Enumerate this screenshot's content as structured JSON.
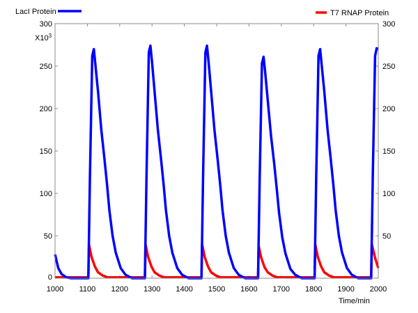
{
  "chart_data": {
    "type": "line",
    "title": "",
    "xlabel": "Time/min",
    "ylabel": "",
    "y_multiplier_label": "X10",
    "y_multiplier_exp": "3",
    "xlim": [
      1000,
      2000
    ],
    "ylim": [
      0,
      300
    ],
    "x_ticks": [
      "1000",
      "1100",
      "1200",
      "1300",
      "1400",
      "1500",
      "1600",
      "1700",
      "1800",
      "1900",
      "2000"
    ],
    "y_ticks_left": [
      "0",
      "50",
      "100",
      "150",
      "200",
      "250",
      "300"
    ],
    "y_ticks_right": [
      "50",
      "100",
      "150",
      "200",
      "250",
      "300"
    ],
    "grid": false,
    "series": [
      {
        "name": "LacI Protein",
        "color": "#0000ff",
        "legend": "top-left",
        "points": [
          [
            1000,
            28
          ],
          [
            1010,
            12
          ],
          [
            1020,
            5
          ],
          [
            1035,
            1
          ],
          [
            1050,
            0
          ],
          [
            1103,
            0
          ],
          [
            1103,
            0
          ],
          [
            1108,
            120
          ],
          [
            1115,
            262
          ],
          [
            1120,
            270
          ],
          [
            1125,
            251
          ],
          [
            1133,
            220
          ],
          [
            1143,
            175
          ],
          [
            1153,
            140
          ],
          [
            1161,
            110
          ],
          [
            1168,
            80
          ],
          [
            1178,
            50
          ],
          [
            1188,
            30
          ],
          [
            1203,
            12
          ],
          [
            1218,
            4
          ],
          [
            1238,
            0
          ],
          [
            1278,
            0
          ],
          [
            1283,
            120
          ],
          [
            1290,
            266
          ],
          [
            1295,
            274
          ],
          [
            1300,
            255
          ],
          [
            1308,
            220
          ],
          [
            1318,
            175
          ],
          [
            1328,
            140
          ],
          [
            1336,
            110
          ],
          [
            1343,
            80
          ],
          [
            1353,
            50
          ],
          [
            1363,
            30
          ],
          [
            1378,
            12
          ],
          [
            1393,
            4
          ],
          [
            1413,
            0
          ],
          [
            1453,
            0
          ],
          [
            1458,
            120
          ],
          [
            1465,
            266
          ],
          [
            1470,
            274
          ],
          [
            1475,
            255
          ],
          [
            1483,
            220
          ],
          [
            1493,
            175
          ],
          [
            1503,
            140
          ],
          [
            1511,
            110
          ],
          [
            1518,
            80
          ],
          [
            1528,
            50
          ],
          [
            1538,
            30
          ],
          [
            1553,
            12
          ],
          [
            1568,
            4
          ],
          [
            1588,
            0
          ],
          [
            1628,
            0
          ],
          [
            1633,
            115
          ],
          [
            1640,
            253
          ],
          [
            1645,
            261
          ],
          [
            1650,
            243
          ],
          [
            1658,
            210
          ],
          [
            1668,
            168
          ],
          [
            1678,
            135
          ],
          [
            1686,
            105
          ],
          [
            1693,
            77
          ],
          [
            1703,
            48
          ],
          [
            1713,
            29
          ],
          [
            1728,
            11
          ],
          [
            1743,
            4
          ],
          [
            1763,
            0
          ],
          [
            1803,
            0
          ],
          [
            1808,
            120
          ],
          [
            1815,
            262
          ],
          [
            1820,
            270
          ],
          [
            1825,
            251
          ],
          [
            1833,
            220
          ],
          [
            1843,
            175
          ],
          [
            1853,
            140
          ],
          [
            1861,
            110
          ],
          [
            1868,
            80
          ],
          [
            1878,
            50
          ],
          [
            1888,
            30
          ],
          [
            1903,
            12
          ],
          [
            1918,
            4
          ],
          [
            1938,
            0
          ],
          [
            1978,
            0
          ],
          [
            1983,
            120
          ],
          [
            1990,
            262
          ],
          [
            1995,
            271
          ],
          [
            2000,
            270
          ]
        ]
      },
      {
        "name": "T7 RNAP Protein",
        "color": "#ff0000",
        "legend": "top-right",
        "points": [
          [
            1000,
            1
          ],
          [
            1102,
            1
          ],
          [
            1103,
            2
          ],
          [
            1105,
            40
          ],
          [
            1113,
            25
          ],
          [
            1123,
            14
          ],
          [
            1133,
            7
          ],
          [
            1148,
            3
          ],
          [
            1163,
            1
          ],
          [
            1277,
            1
          ],
          [
            1278,
            2
          ],
          [
            1280,
            40
          ],
          [
            1288,
            25
          ],
          [
            1298,
            14
          ],
          [
            1308,
            7
          ],
          [
            1323,
            3
          ],
          [
            1338,
            1
          ],
          [
            1452,
            1
          ],
          [
            1453,
            2
          ],
          [
            1455,
            40
          ],
          [
            1463,
            25
          ],
          [
            1473,
            14
          ],
          [
            1483,
            7
          ],
          [
            1498,
            3
          ],
          [
            1513,
            1
          ],
          [
            1627,
            1
          ],
          [
            1628,
            2
          ],
          [
            1630,
            38
          ],
          [
            1638,
            24
          ],
          [
            1648,
            13
          ],
          [
            1658,
            7
          ],
          [
            1673,
            3
          ],
          [
            1688,
            1
          ],
          [
            1802,
            1
          ],
          [
            1803,
            2
          ],
          [
            1805,
            40
          ],
          [
            1813,
            25
          ],
          [
            1823,
            14
          ],
          [
            1833,
            7
          ],
          [
            1848,
            3
          ],
          [
            1863,
            1
          ],
          [
            1977,
            1
          ],
          [
            1978,
            2
          ],
          [
            1980,
            40
          ],
          [
            1990,
            24
          ],
          [
            2000,
            12
          ]
        ]
      }
    ]
  }
}
